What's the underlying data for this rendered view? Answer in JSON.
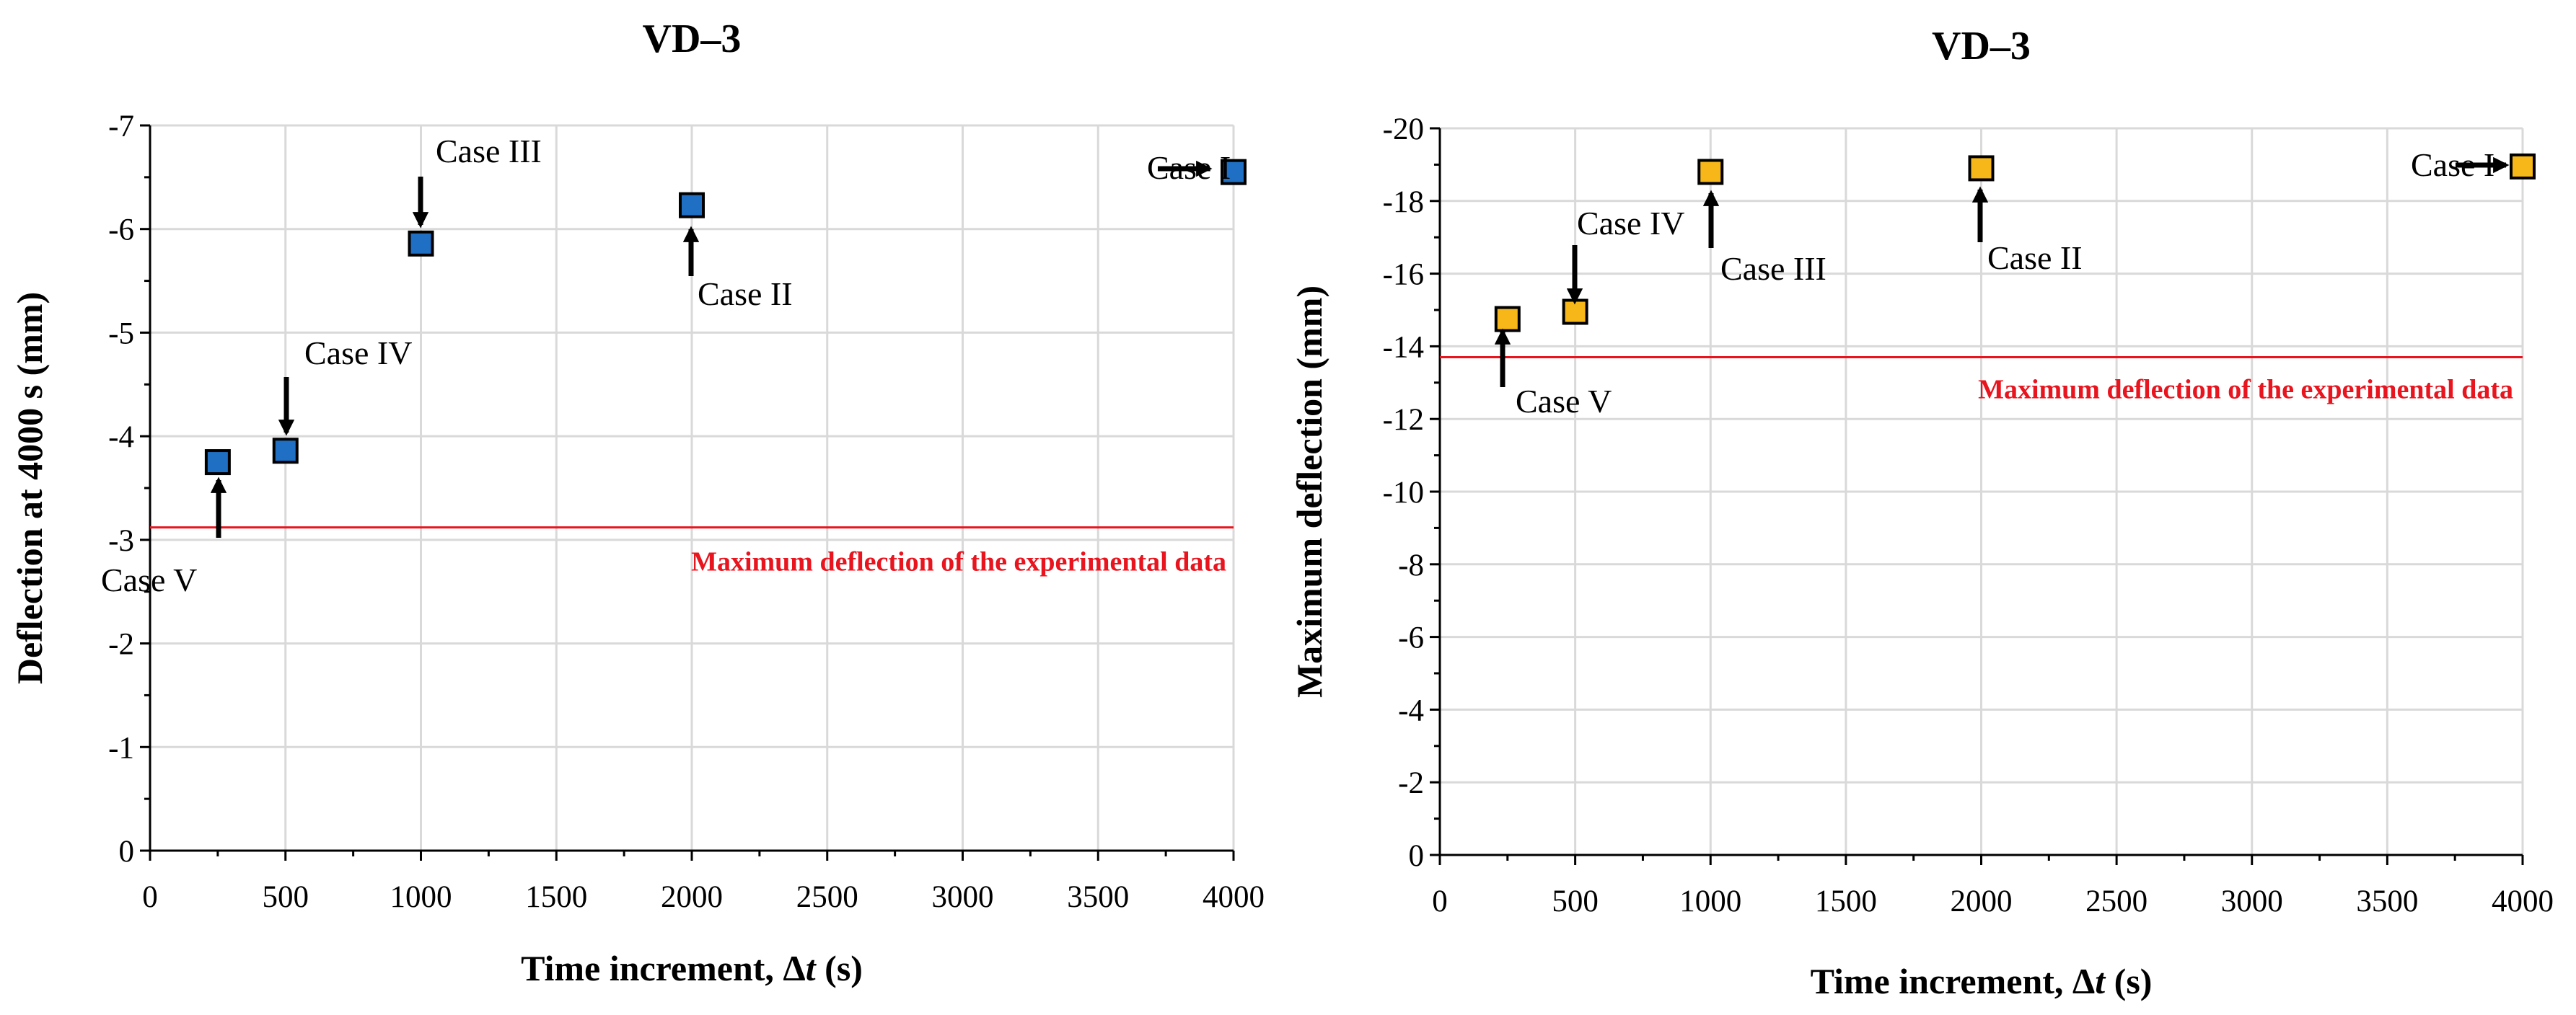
{
  "chart_data": [
    {
      "type": "scatter",
      "title": "VD–3",
      "xlabel": "Time increment, Δ",
      "xlabel_italic": "t",
      "xlabel_unit": " (s)",
      "ylabel": "Deflection at 4000 s (mm)",
      "xlim": [
        0,
        4000
      ],
      "xticks": [
        0,
        500,
        1000,
        1500,
        2000,
        2500,
        3000,
        3500,
        4000
      ],
      "xtick_labels": [
        "0",
        "500",
        "1000",
        "1500",
        "2000",
        "2500",
        "3000",
        "3500",
        "4000"
      ],
      "ylim": [
        0,
        -7
      ],
      "yticks": [
        0,
        -1,
        -2,
        -3,
        -4,
        -5,
        -6,
        -7
      ],
      "ytick_labels": [
        "0",
        "-1",
        "-2",
        "-3",
        "-4",
        "-5",
        "-6",
        "-7"
      ],
      "grid": true,
      "marker_color": "#1f6fc5",
      "series": [
        {
          "name": "VD–3",
          "x": [
            250,
            500,
            1000,
            2000,
            4000
          ],
          "y": [
            -3.75,
            -3.86,
            -5.86,
            -6.23,
            -6.55
          ]
        }
      ],
      "reference_line": {
        "y": -3.12,
        "label": "Maximum deflection of the experimental data",
        "color": "#e8141e"
      },
      "annotations": [
        {
          "text": "Case V",
          "x": 250,
          "y": -3.75,
          "arrow_from": "below"
        },
        {
          "text": "Case IV",
          "x": 500,
          "y": -3.86,
          "arrow_from": "above"
        },
        {
          "text": "Case III",
          "x": 1000,
          "y": -5.86,
          "arrow_from": "above"
        },
        {
          "text": "Case II",
          "x": 2000,
          "y": -6.23,
          "arrow_from": "below"
        },
        {
          "text": "Case I",
          "x": 4000,
          "y": -6.55,
          "arrow_from": "left"
        }
      ]
    },
    {
      "type": "scatter",
      "title": "VD–3",
      "xlabel": "Time increment, Δ",
      "xlabel_italic": "t",
      "xlabel_unit": " (s)",
      "ylabel": "Maximum deflection (mm)",
      "xlim": [
        0,
        4000
      ],
      "xticks": [
        0,
        500,
        1000,
        1500,
        2000,
        2500,
        3000,
        3500,
        4000
      ],
      "xtick_labels": [
        "0",
        "500",
        "1000",
        "1500",
        "2000",
        "2500",
        "3000",
        "3500",
        "4000"
      ],
      "ylim": [
        0,
        -20
      ],
      "yticks": [
        0,
        -2,
        -4,
        -6,
        -8,
        -10,
        -12,
        -14,
        -16,
        -18,
        -20
      ],
      "ytick_labels": [
        "0",
        "-2",
        "-4",
        "-6",
        "-8",
        "-10",
        "-12",
        "-14",
        "-16",
        "-18",
        "-20"
      ],
      "grid": true,
      "marker_color": "#f7b718",
      "series": [
        {
          "name": "VD–3",
          "x": [
            250,
            500,
            1000,
            2000,
            4000
          ],
          "y": [
            -14.75,
            -14.95,
            -18.8,
            -18.9,
            -18.95
          ]
        }
      ],
      "reference_line": {
        "y": -13.7,
        "label": "Maximum deflection of the experimental data",
        "color": "#e8141e"
      },
      "annotations": [
        {
          "text": "Case V",
          "x": 250,
          "y": -14.75,
          "arrow_from": "below"
        },
        {
          "text": "Case IV",
          "x": 500,
          "y": -14.95,
          "arrow_from": "above"
        },
        {
          "text": "Case III",
          "x": 1000,
          "y": -18.8,
          "arrow_from": "below"
        },
        {
          "text": "Case II",
          "x": 2000,
          "y": -18.9,
          "arrow_from": "below"
        },
        {
          "text": "Case I",
          "x": 4000,
          "y": -18.95,
          "arrow_from": "left"
        }
      ]
    }
  ]
}
